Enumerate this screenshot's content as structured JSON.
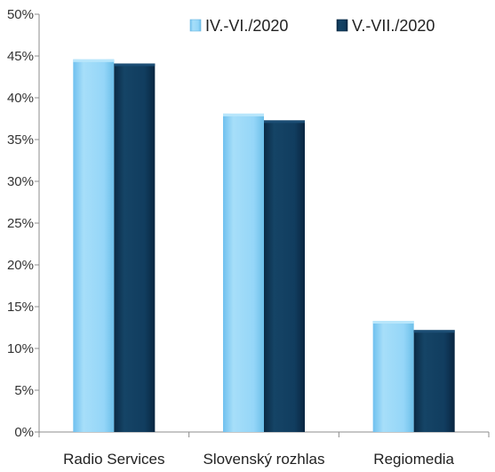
{
  "chart_data": {
    "type": "bar",
    "categories": [
      "Radio Services",
      "Slovenský rozhlas",
      "Regiomedia"
    ],
    "series": [
      {
        "name": "IV.-VI./2020",
        "values": [
          44.6,
          38.1,
          13.3
        ],
        "color": "#8fd3f8"
      },
      {
        "name": "V.-VII./2020",
        "values": [
          44.1,
          37.3,
          12.2
        ],
        "color": "#0f3859"
      }
    ],
    "y_ticks": [
      "0%",
      "5%",
      "10%",
      "15%",
      "20%",
      "25%",
      "30%",
      "35%",
      "40%",
      "45%",
      "50%"
    ],
    "ylim": [
      0,
      50
    ],
    "grid": false,
    "legend_position": "top-right",
    "title": "",
    "xlabel": "",
    "ylabel": ""
  }
}
